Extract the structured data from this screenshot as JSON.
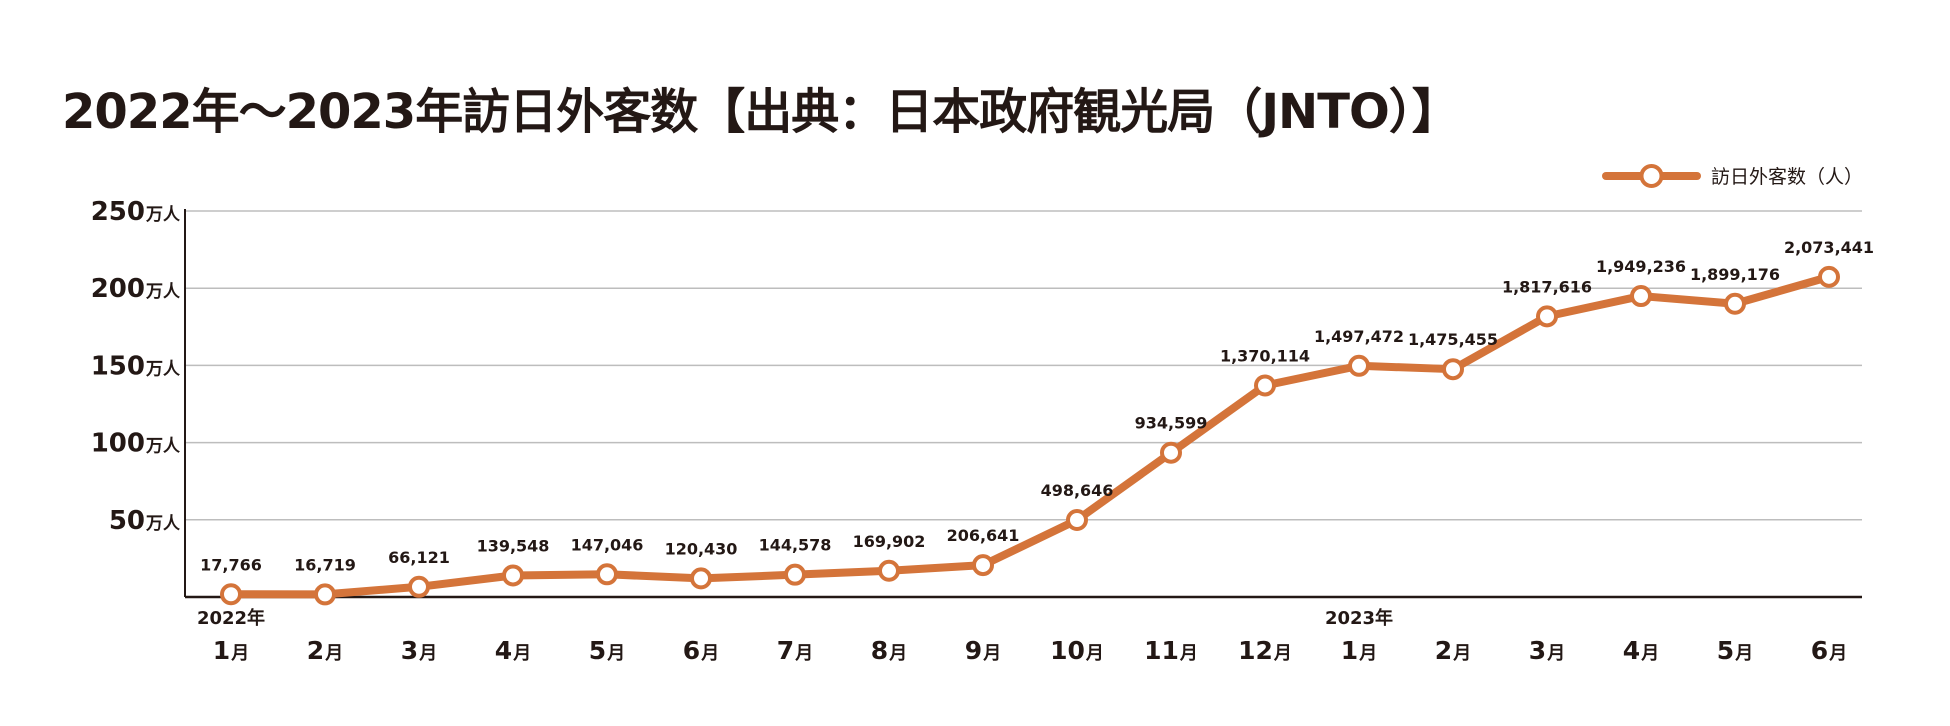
{
  "chart_data": {
    "type": "line",
    "title": "2022年〜2023年訪日外客数【出典：日本政府観光局（JNTO）】",
    "legend": "訪日外客数（人）",
    "legend_position": "top-right",
    "line_color": "#D4743A",
    "grid": true,
    "ylim": [
      0,
      2500000
    ],
    "y_ticks": [
      {
        "value": 500000,
        "label": "50",
        "unit": "万人"
      },
      {
        "value": 1000000,
        "label": "100",
        "unit": "万人"
      },
      {
        "value": 1500000,
        "label": "150",
        "unit": "万人"
      },
      {
        "value": 2000000,
        "label": "200",
        "unit": "万人"
      },
      {
        "value": 2500000,
        "label": "250",
        "unit": "万人"
      }
    ],
    "year_labels": [
      {
        "index": 0,
        "label": "2022年"
      },
      {
        "index": 12,
        "label": "2023年"
      }
    ],
    "categories": [
      "1月",
      "2月",
      "3月",
      "4月",
      "5月",
      "6月",
      "7月",
      "8月",
      "9月",
      "10月",
      "11月",
      "12月",
      "1月",
      "2月",
      "3月",
      "4月",
      "5月",
      "6月"
    ],
    "values": [
      17766,
      16719,
      66121,
      139548,
      147046,
      120430,
      144578,
      169902,
      206641,
      498646,
      934599,
      1370114,
      1497472,
      1475455,
      1817616,
      1949236,
      1899176,
      2073441
    ],
    "value_labels": [
      "17,766",
      "16,719",
      "66,121",
      "139,548",
      "147,046",
      "120,430",
      "144,578",
      "169,902",
      "206,641",
      "498,646",
      "934,599",
      "1,370,114",
      "1,497,472",
      "1,475,455",
      "1,817,616",
      "1,949,236",
      "1,899,176",
      "2,073,441"
    ]
  }
}
